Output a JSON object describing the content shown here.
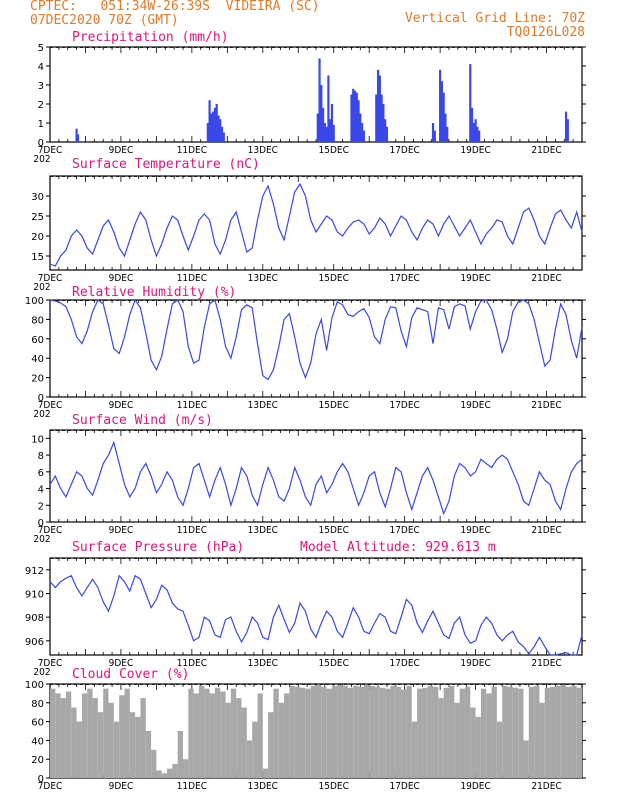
{
  "header": {
    "line1": "CPTEC:   051:34W-26:39S  VIDEIRA (SC)",
    "line2": "07DEC2020 70Z (GMT)",
    "right1": "Vertical Grid Line: 70Z",
    "right2": "TQ0126L028"
  },
  "colors": {
    "series": "#3a48e8",
    "header": "#e07a2a",
    "title": "#e0157a",
    "cloud": "#a8a8a8"
  },
  "x_axis": {
    "labels": [
      "7DEC",
      "9DEC",
      "11DEC",
      "13DEC",
      "15DEC",
      "17DEC",
      "19DEC",
      "21DEC"
    ],
    "label_days": [
      0,
      2,
      4,
      6,
      8,
      10,
      12,
      14
    ],
    "extra_label": "202",
    "range_days": [
      0,
      15
    ]
  },
  "chart_data": [
    {
      "type": "bar",
      "title": "Precipitation (mm/h)",
      "ylim": [
        0,
        5
      ],
      "yticks": [
        0,
        1,
        2,
        3,
        4,
        5
      ],
      "x": [
        0.75,
        0.79,
        4.45,
        4.5,
        4.55,
        4.6,
        4.65,
        4.7,
        4.75,
        4.8,
        4.85,
        4.9,
        7.55,
        7.6,
        7.65,
        7.7,
        7.75,
        7.8,
        7.85,
        7.9,
        7.95,
        8.0,
        8.5,
        8.55,
        8.6,
        8.65,
        8.7,
        8.75,
        8.8,
        8.85,
        9.2,
        9.25,
        9.3,
        9.35,
        9.4,
        9.45,
        9.5,
        10.8,
        10.85,
        11.0,
        11.05,
        11.1,
        11.15,
        11.2,
        11.85,
        11.9,
        11.95,
        12.0,
        12.05,
        12.1,
        14.55,
        14.6
      ],
      "values": [
        0.7,
        0.4,
        1.0,
        2.2,
        1.5,
        1.6,
        1.8,
        2.0,
        1.4,
        1.2,
        0.8,
        0.5,
        1.5,
        4.4,
        3.0,
        1.8,
        1.0,
        0.8,
        3.5,
        1.2,
        2.0,
        0.9,
        2.5,
        2.8,
        2.7,
        2.6,
        2.2,
        1.5,
        1.0,
        0.6,
        2.5,
        3.8,
        3.5,
        2.5,
        2.0,
        1.2,
        0.8,
        1.0,
        0.6,
        3.8,
        3.2,
        2.6,
        1.5,
        0.8,
        4.1,
        1.8,
        1.0,
        1.2,
        0.8,
        0.6,
        1.6,
        1.2
      ]
    },
    {
      "type": "line",
      "title": "Surface Temperature (nC)",
      "ylim": [
        11.5,
        35
      ],
      "yticks": [
        15,
        20,
        25,
        30
      ],
      "x": [
        0,
        0.15,
        0.3,
        0.45,
        0.6,
        0.75,
        0.9,
        1.05,
        1.2,
        1.35,
        1.5,
        1.65,
        1.8,
        1.95,
        2.1,
        2.25,
        2.4,
        2.55,
        2.7,
        2.85,
        3.0,
        3.15,
        3.3,
        3.45,
        3.6,
        3.75,
        3.9,
        4.05,
        4.2,
        4.35,
        4.5,
        4.65,
        4.8,
        4.95,
        5.1,
        5.25,
        5.4,
        5.55,
        5.7,
        5.85,
        6.0,
        6.15,
        6.3,
        6.45,
        6.6,
        6.75,
        6.9,
        7.05,
        7.2,
        7.35,
        7.5,
        7.65,
        7.8,
        7.95,
        8.1,
        8.25,
        8.4,
        8.55,
        8.7,
        8.85,
        9.0,
        9.15,
        9.3,
        9.45,
        9.6,
        9.75,
        9.9,
        10.05,
        10.2,
        10.35,
        10.5,
        10.65,
        10.8,
        10.95,
        11.1,
        11.25,
        11.4,
        11.55,
        11.7,
        11.85,
        12.0,
        12.15,
        12.3,
        12.45,
        12.6,
        12.75,
        12.9,
        13.05,
        13.2,
        13.35,
        13.5,
        13.65,
        13.8,
        13.95,
        14.1,
        14.25,
        14.4,
        14.55,
        14.7,
        14.85,
        15.0
      ],
      "values": [
        13,
        12.5,
        15,
        16.5,
        20,
        21.5,
        20,
        17,
        15.5,
        19,
        22.5,
        24,
        21,
        17,
        15,
        19,
        23,
        26,
        24,
        19,
        15,
        18,
        22,
        25,
        24,
        20,
        16.5,
        20,
        24,
        25.5,
        24,
        18,
        15.5,
        19,
        24,
        26,
        21,
        16,
        17,
        24,
        30,
        32.5,
        28,
        22,
        19,
        25,
        31,
        33,
        30,
        24,
        21,
        23,
        25,
        24,
        21,
        20,
        22,
        23.5,
        24,
        23,
        20.5,
        22,
        24.5,
        23,
        20,
        22.5,
        25,
        24,
        21,
        19,
        22,
        24,
        23,
        20,
        23,
        25,
        22.5,
        20,
        22,
        24,
        21,
        18,
        20.5,
        22,
        24,
        23.5,
        20,
        18,
        22,
        26,
        27,
        24,
        20,
        18,
        22,
        25.5,
        26.5,
        24,
        22,
        26,
        21
      ]
    },
    {
      "type": "line",
      "title": "Relative Humidity (%)",
      "ylim": [
        0,
        100
      ],
      "yticks": [
        0,
        20,
        40,
        60,
        80,
        100
      ],
      "x": [
        0,
        0.15,
        0.3,
        0.45,
        0.6,
        0.75,
        0.9,
        1.05,
        1.2,
        1.35,
        1.5,
        1.65,
        1.8,
        1.95,
        2.1,
        2.25,
        2.4,
        2.55,
        2.7,
        2.85,
        3.0,
        3.15,
        3.3,
        3.45,
        3.6,
        3.75,
        3.9,
        4.05,
        4.2,
        4.35,
        4.5,
        4.65,
        4.8,
        4.95,
        5.1,
        5.25,
        5.4,
        5.55,
        5.7,
        5.85,
        6.0,
        6.15,
        6.3,
        6.45,
        6.6,
        6.75,
        6.9,
        7.05,
        7.2,
        7.35,
        7.5,
        7.65,
        7.8,
        7.95,
        8.1,
        8.25,
        8.4,
        8.55,
        8.7,
        8.85,
        9.0,
        9.15,
        9.3,
        9.45,
        9.6,
        9.75,
        9.9,
        10.05,
        10.2,
        10.35,
        10.5,
        10.65,
        10.8,
        10.95,
        11.1,
        11.25,
        11.4,
        11.55,
        11.7,
        11.85,
        12.0,
        12.15,
        12.3,
        12.45,
        12.6,
        12.75,
        12.9,
        13.05,
        13.2,
        13.35,
        13.5,
        13.65,
        13.8,
        13.95,
        14.1,
        14.25,
        14.4,
        14.55,
        14.7,
        14.85,
        15.0
      ],
      "values": [
        100,
        99,
        97,
        93,
        80,
        62,
        55,
        68,
        88,
        100,
        96,
        74,
        50,
        45,
        62,
        85,
        100,
        92,
        66,
        38,
        28,
        42,
        70,
        96,
        100,
        88,
        52,
        35,
        38,
        72,
        96,
        100,
        80,
        52,
        40,
        62,
        90,
        95,
        92,
        55,
        22,
        18,
        28,
        52,
        80,
        86,
        62,
        35,
        20,
        35,
        65,
        80,
        48,
        82,
        98,
        95,
        85,
        83,
        88,
        91,
        82,
        62,
        55,
        80,
        93,
        92,
        68,
        52,
        82,
        92,
        90,
        88,
        55,
        92,
        90,
        70,
        93,
        96,
        94,
        70,
        88,
        99,
        100,
        90,
        70,
        46,
        60,
        88,
        98,
        100,
        96,
        80,
        56,
        32,
        38,
        70,
        96,
        85,
        58,
        40,
        72
      ]
    },
    {
      "type": "line",
      "title": "Surface Wind (m/s)",
      "ylim": [
        0,
        11
      ],
      "yticks": [
        0,
        2,
        4,
        6,
        8,
        10
      ],
      "x": [
        0,
        0.15,
        0.3,
        0.45,
        0.6,
        0.75,
        0.9,
        1.05,
        1.2,
        1.35,
        1.5,
        1.65,
        1.8,
        1.95,
        2.1,
        2.25,
        2.4,
        2.55,
        2.7,
        2.85,
        3.0,
        3.15,
        3.3,
        3.45,
        3.6,
        3.75,
        3.9,
        4.05,
        4.2,
        4.35,
        4.5,
        4.65,
        4.8,
        4.95,
        5.1,
        5.25,
        5.4,
        5.55,
        5.7,
        5.85,
        6.0,
        6.15,
        6.3,
        6.45,
        6.6,
        6.75,
        6.9,
        7.05,
        7.2,
        7.35,
        7.5,
        7.65,
        7.8,
        7.95,
        8.1,
        8.25,
        8.4,
        8.55,
        8.7,
        8.85,
        9.0,
        9.15,
        9.3,
        9.45,
        9.6,
        9.75,
        9.9,
        10.05,
        10.2,
        10.35,
        10.5,
        10.65,
        10.8,
        10.95,
        11.1,
        11.25,
        11.4,
        11.55,
        11.7,
        11.85,
        12.0,
        12.15,
        12.3,
        12.45,
        12.6,
        12.75,
        12.9,
        13.05,
        13.2,
        13.35,
        13.5,
        13.65,
        13.8,
        13.95,
        14.1,
        14.25,
        14.4,
        14.55,
        14.7,
        14.85,
        15.0
      ],
      "values": [
        4.5,
        5.5,
        4,
        3,
        4.5,
        6,
        5.5,
        4,
        3.2,
        5,
        7,
        8,
        9.5,
        7,
        4.5,
        3,
        4,
        6,
        7,
        5.5,
        3.5,
        4.5,
        6,
        5,
        3,
        2,
        4,
        6.5,
        7,
        5,
        3,
        5,
        6.5,
        4.5,
        2,
        4,
        6.5,
        5.5,
        3.2,
        2,
        4.5,
        6.5,
        5,
        3,
        2.5,
        4,
        6.5,
        5,
        3,
        2,
        4.5,
        5.5,
        3.5,
        4.5,
        6,
        7,
        6,
        4,
        2,
        3.5,
        5.5,
        6,
        3.5,
        1.8,
        4,
        6.5,
        6,
        3.5,
        1.5,
        3.5,
        5.5,
        6.5,
        5,
        3,
        1,
        2.5,
        5.5,
        7,
        6.5,
        5.5,
        6,
        7.5,
        7,
        6.5,
        7.5,
        8,
        7.5,
        6,
        4.5,
        2.5,
        2,
        4,
        6,
        5,
        4.5,
        2.5,
        1.5,
        4,
        6,
        7,
        7.5
      ]
    },
    {
      "type": "line",
      "title": "Surface Pressure (hPa)",
      "annotation": "Model Altitude: 929.613 m",
      "ylim": [
        904.8,
        913
      ],
      "yticks": [
        906,
        908,
        910,
        912
      ],
      "x": [
        0,
        0.15,
        0.3,
        0.45,
        0.6,
        0.75,
        0.9,
        1.05,
        1.2,
        1.35,
        1.5,
        1.65,
        1.8,
        1.95,
        2.1,
        2.25,
        2.4,
        2.55,
        2.7,
        2.85,
        3.0,
        3.15,
        3.3,
        3.45,
        3.6,
        3.75,
        3.9,
        4.05,
        4.2,
        4.35,
        4.5,
        4.65,
        4.8,
        4.95,
        5.1,
        5.25,
        5.4,
        5.55,
        5.7,
        5.85,
        6.0,
        6.15,
        6.3,
        6.45,
        6.6,
        6.75,
        6.9,
        7.05,
        7.2,
        7.35,
        7.5,
        7.65,
        7.8,
        7.95,
        8.1,
        8.25,
        8.4,
        8.55,
        8.7,
        8.85,
        9.0,
        9.15,
        9.3,
        9.45,
        9.6,
        9.75,
        9.9,
        10.05,
        10.2,
        10.35,
        10.5,
        10.65,
        10.8,
        10.95,
        11.1,
        11.25,
        11.4,
        11.55,
        11.7,
        11.85,
        12.0,
        12.15,
        12.3,
        12.45,
        12.6,
        12.75,
        12.9,
        13.05,
        13.2,
        13.35,
        13.5,
        13.65,
        13.8,
        13.95,
        14.1,
        14.25,
        14.4,
        14.55,
        14.7,
        14.85,
        15.0
      ],
      "values": [
        911,
        910.5,
        911,
        911.3,
        911.5,
        910.5,
        909.8,
        910.5,
        911.2,
        910.5,
        909.3,
        908.5,
        909.8,
        911.5,
        911,
        910.2,
        911.5,
        911.2,
        910,
        908.8,
        909.5,
        910.7,
        910.3,
        909.2,
        908.7,
        908.5,
        907.3,
        906,
        906.3,
        908,
        907.7,
        906.5,
        906.3,
        907.8,
        908,
        906.8,
        905.9,
        906.7,
        908,
        907.5,
        906.3,
        906.1,
        908,
        909,
        907.8,
        906.7,
        907.5,
        909.2,
        908.5,
        907,
        906.3,
        907.5,
        908.5,
        908,
        906.8,
        906.3,
        907.5,
        908.8,
        908,
        906.8,
        906.6,
        907.5,
        908.3,
        908,
        906.8,
        906.6,
        908,
        909.5,
        909,
        907.5,
        906.7,
        907.7,
        908.5,
        907.5,
        906.5,
        906.2,
        907.5,
        908,
        906.5,
        905.8,
        906,
        907.3,
        908,
        907.5,
        906.5,
        906,
        906.5,
        906.8,
        905.9,
        905.5,
        904.9,
        905.5,
        906.3,
        905.5,
        904.7,
        904.5,
        904.9,
        905,
        904.6,
        904.5,
        906.5
      ]
    },
    {
      "type": "bar",
      "title": "Cloud Cover (%)",
      "ylim": [
        0,
        100
      ],
      "yticks": [
        0,
        20,
        40,
        60,
        80,
        100
      ],
      "x": [
        0,
        0.15,
        0.3,
        0.45,
        0.6,
        0.75,
        0.9,
        1.05,
        1.2,
        1.35,
        1.5,
        1.65,
        1.8,
        1.95,
        2.1,
        2.25,
        2.4,
        2.55,
        2.7,
        2.85,
        3.0,
        3.15,
        3.3,
        3.45,
        3.6,
        3.75,
        3.9,
        4.05,
        4.2,
        4.35,
        4.5,
        4.65,
        4.8,
        4.95,
        5.1,
        5.25,
        5.4,
        5.55,
        5.7,
        5.85,
        6.0,
        6.15,
        6.3,
        6.45,
        6.6,
        6.75,
        6.9,
        7.05,
        7.2,
        7.35,
        7.5,
        7.65,
        7.8,
        7.95,
        8.1,
        8.25,
        8.4,
        8.55,
        8.7,
        8.85,
        9.0,
        9.15,
        9.3,
        9.45,
        9.6,
        9.75,
        9.9,
        10.05,
        10.2,
        10.35,
        10.5,
        10.65,
        10.8,
        10.95,
        11.1,
        11.25,
        11.4,
        11.55,
        11.7,
        11.85,
        12.0,
        12.15,
        12.3,
        12.45,
        12.6,
        12.75,
        12.9,
        13.05,
        13.2,
        13.35,
        13.5,
        13.65,
        13.8,
        13.95,
        14.1,
        14.25,
        14.4,
        14.55,
        14.7,
        14.85
      ],
      "values": [
        95,
        90,
        85,
        92,
        75,
        60,
        90,
        95,
        85,
        70,
        95,
        80,
        60,
        88,
        95,
        70,
        65,
        85,
        50,
        30,
        8,
        5,
        10,
        15,
        50,
        20,
        95,
        90,
        98,
        95,
        90,
        96,
        92,
        80,
        95,
        85,
        75,
        40,
        60,
        90,
        10,
        70,
        95,
        80,
        90,
        98,
        97,
        96,
        95,
        98,
        99,
        97,
        95,
        98,
        99,
        98,
        96,
        98,
        97,
        99,
        98,
        97,
        96,
        95,
        98,
        97,
        94,
        98,
        60,
        95,
        96,
        98,
        97,
        85,
        96,
        98,
        80,
        95,
        97,
        75,
        65,
        95,
        90,
        97,
        60,
        98,
        97,
        96,
        95,
        40,
        97,
        98,
        80,
        96,
        97,
        98,
        99,
        97,
        98,
        96
      ]
    }
  ]
}
